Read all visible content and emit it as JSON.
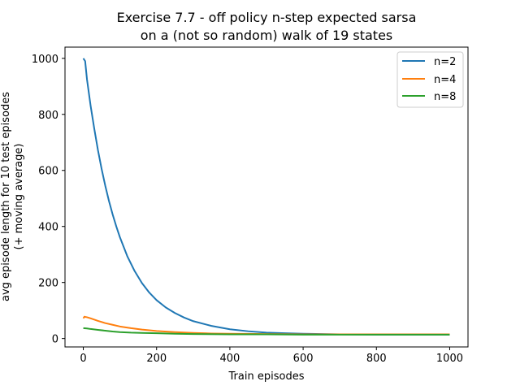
{
  "chart_data": {
    "type": "line",
    "title": [
      "Exercise 7.7 - off policy n-step expected sarsa",
      "on a (not so random) walk of 19 states"
    ],
    "xlabel": "Train episodes",
    "ylabel": [
      "avg episode length for 10 test episodes",
      "(+ moving average)"
    ],
    "xlim": [
      -50,
      1050
    ],
    "ylim": [
      -30,
      1040
    ],
    "xticks": [
      0,
      200,
      400,
      600,
      800,
      1000
    ],
    "yticks": [
      0,
      200,
      400,
      600,
      800,
      1000
    ],
    "legend_position": "top-right",
    "series": [
      {
        "name": "n=2",
        "color": "#1f77b4",
        "x": [
          0,
          5,
          10,
          20,
          30,
          40,
          50,
          60,
          70,
          80,
          90,
          100,
          120,
          140,
          160,
          180,
          200,
          225,
          250,
          275,
          300,
          350,
          400,
          450,
          500,
          550,
          600,
          700,
          800,
          900,
          1000
        ],
        "y": [
          1000,
          990,
          925,
          830,
          748,
          672,
          605,
          545,
          491,
          443,
          400,
          361,
          294,
          241,
          198,
          164,
          137,
          111,
          91,
          75,
          62,
          45,
          33,
          26,
          21,
          19,
          17,
          15,
          14,
          14,
          14
        ]
      },
      {
        "name": "n=4",
        "color": "#ff7f0e",
        "x": [
          0,
          3,
          6,
          10,
          20,
          40,
          60,
          80,
          100,
          130,
          160,
          200,
          250,
          300,
          350,
          400,
          500,
          600,
          700,
          800,
          900,
          1000
        ],
        "y": [
          72,
          78,
          77,
          76,
          72,
          63,
          55,
          49,
          43,
          37,
          32,
          27,
          23,
          20,
          18,
          17,
          16,
          15,
          15,
          15,
          15,
          15
        ]
      },
      {
        "name": "n=8",
        "color": "#2ca02c",
        "x": [
          0,
          10,
          20,
          40,
          60,
          80,
          100,
          130,
          160,
          200,
          250,
          300,
          400,
          500,
          600,
          700,
          800,
          900,
          1000
        ],
        "y": [
          37,
          36,
          34,
          31,
          28,
          25,
          23,
          21,
          20,
          19,
          17,
          16,
          15,
          15,
          14,
          14,
          14,
          14,
          14
        ]
      }
    ]
  }
}
